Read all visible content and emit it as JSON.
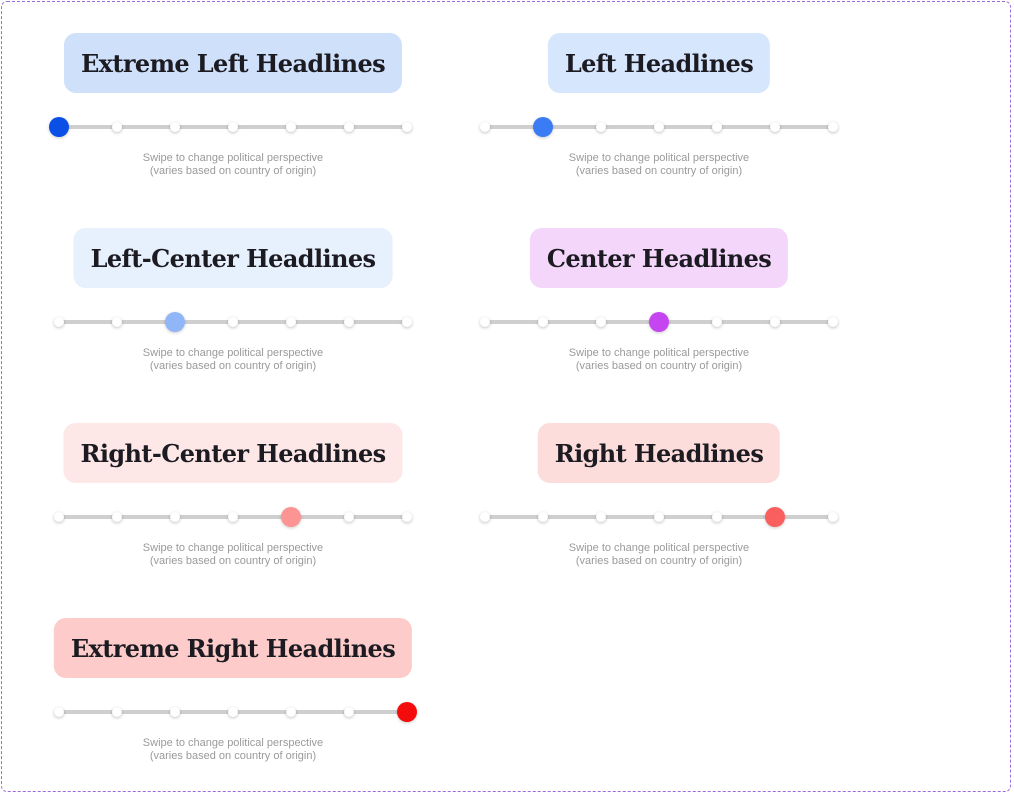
{
  "hint": {
    "line1": "Swipe to change political perspective",
    "line2": "(varies based on country of origin)"
  },
  "colors": {
    "track": "#cfcfcf",
    "tick": "#ffffff"
  },
  "slider": {
    "stops": 7
  },
  "variants": [
    {
      "label": "Extreme Left Headlines",
      "pill_bg": "#cfe0fb",
      "thumb": "#0b4fe6",
      "position": 0
    },
    {
      "label": "Left Headlines",
      "pill_bg": "#d6e6fd",
      "thumb": "#3b7cf5",
      "position": 1
    },
    {
      "label": "Left-Center Headlines",
      "pill_bg": "#e7f0fd",
      "thumb": "#91b6f7",
      "position": 2
    },
    {
      "label": "Center Headlines",
      "pill_bg": "#f4d6fb",
      "thumb": "#c546f1",
      "position": 3
    },
    {
      "label": "Right-Center Headlines",
      "pill_bg": "#fde8e7",
      "thumb": "#fb9493",
      "position": 4
    },
    {
      "label": "Right Headlines",
      "pill_bg": "#fcdddc",
      "thumb": "#f95f5f",
      "position": 5
    },
    {
      "label": "Extreme Right Headlines",
      "pill_bg": "#fdcbc9",
      "thumb": "#f40c0c",
      "position": 6
    }
  ]
}
